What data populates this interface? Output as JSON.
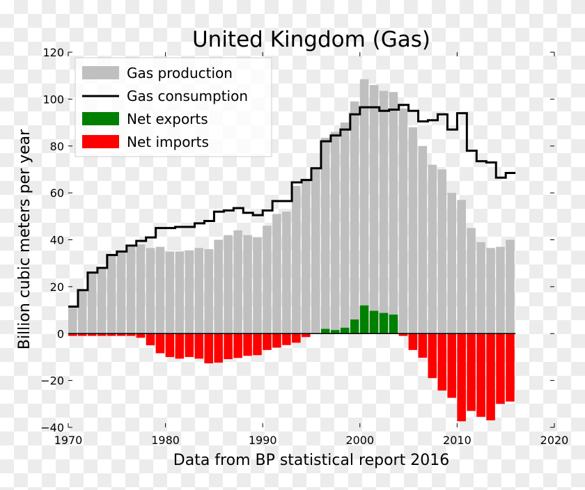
{
  "chart_data": {
    "type": "bar",
    "title": "United Kingdom (Gas)",
    "xlabel": "Data from BP statistical report 2016",
    "ylabel": "Billion cubic meters per year",
    "xlim": [
      1970,
      2020
    ],
    "ylim": [
      -40,
      120
    ],
    "xticks": [
      "1970",
      "1980",
      "1990",
      "2000",
      "2010",
      "2020"
    ],
    "yticks": [
      "−40",
      "−20",
      "0",
      "20",
      "40",
      "60",
      "80",
      "100",
      "120"
    ],
    "grid": false,
    "legend_position": "top-left",
    "colors": {
      "production": "#bfbfbf",
      "consumption": "#000000",
      "exports": "#008000",
      "imports": "#ff0000"
    },
    "legend": [
      "Gas production",
      "Gas consumption",
      "Net exports",
      "Net imports"
    ],
    "years": [
      1970,
      1971,
      1972,
      1973,
      1974,
      1975,
      1976,
      1977,
      1978,
      1979,
      1980,
      1981,
      1982,
      1983,
      1984,
      1985,
      1986,
      1987,
      1988,
      1989,
      1990,
      1991,
      1992,
      1993,
      1994,
      1995,
      1996,
      1997,
      1998,
      1999,
      2000,
      2001,
      2002,
      2003,
      2004,
      2005,
      2006,
      2007,
      2008,
      2009,
      2010,
      2011,
      2012,
      2013,
      2014,
      2015
    ],
    "series": [
      {
        "name": "Gas production",
        "type": "bar",
        "values": [
          11,
          18,
          26,
          28,
          33,
          35,
          37,
          38,
          36.5,
          37,
          35,
          35,
          35.5,
          36.5,
          36,
          40,
          42,
          44,
          42,
          41,
          46,
          51,
          52,
          63,
          66,
          71,
          83.5,
          86,
          90,
          99,
          108.5,
          106,
          103.5,
          103,
          96,
          88,
          80,
          72,
          70,
          60,
          57,
          45,
          39,
          36.5,
          37,
          40
        ]
      },
      {
        "name": "Gas consumption",
        "type": "step",
        "values": [
          11.5,
          18.5,
          26,
          28,
          33.5,
          35,
          37.5,
          39.5,
          41,
          45,
          45,
          45.5,
          45.5,
          47,
          48,
          52,
          52.5,
          53.5,
          51.5,
          50.5,
          52.5,
          56.5,
          56.5,
          64.5,
          65.5,
          70.5,
          82,
          84.5,
          87,
          93.5,
          96.5,
          96.5,
          95,
          95.5,
          97.5,
          95,
          90.5,
          91,
          93.5,
          87,
          94,
          78,
          73.5,
          73,
          66.5,
          68.5
        ]
      },
      {
        "name": "Net exports / Net imports",
        "type": "bar",
        "values": [
          -1,
          -1,
          -1,
          -1,
          -1,
          -1,
          -1,
          -1.8,
          -5,
          -8.4,
          -10,
          -10.7,
          -10,
          -10.7,
          -12.7,
          -12.4,
          -10.9,
          -10.4,
          -9.5,
          -9.2,
          -7,
          -6,
          -4.9,
          -3.9,
          -1.5,
          0.2,
          2,
          1.5,
          2.5,
          6,
          12,
          9.7,
          8.8,
          8.1,
          -1,
          -7,
          -10.3,
          -19,
          -24.3,
          -27.4,
          -37.4,
          -33,
          -35.5,
          -37,
          -30,
          -29
        ]
      }
    ]
  }
}
